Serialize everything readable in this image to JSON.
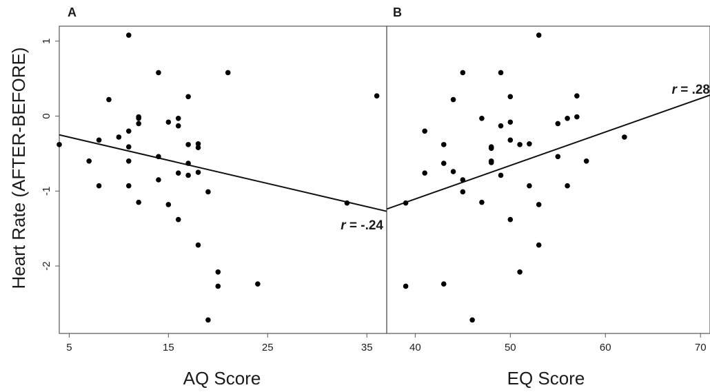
{
  "ylabel": "Heart Rate (AFTER-BEFORE)",
  "y_ticks": [
    "-2",
    "-1",
    "0",
    "1"
  ],
  "chart_data": [
    {
      "type": "scatter",
      "panel_label": "A",
      "xlabel": "AQ Score",
      "ylabel": "Heart Rate (AFTER-BEFORE)",
      "x_ticks": [
        "5",
        "15",
        "25",
        "35"
      ],
      "xlim": [
        4,
        37
      ],
      "ylim": [
        -2.9,
        1.2
      ],
      "grid": false,
      "annotation": {
        "italic": "r",
        "rest": " = -.24"
      },
      "regression": {
        "x": [
          4,
          37
        ],
        "y": [
          -0.25,
          -1.27
        ]
      },
      "points": [
        {
          "x": 4,
          "y": -0.38
        },
        {
          "x": 7,
          "y": -0.6
        },
        {
          "x": 8,
          "y": -0.32
        },
        {
          "x": 8,
          "y": -0.93
        },
        {
          "x": 9,
          "y": 0.22
        },
        {
          "x": 10,
          "y": -0.28
        },
        {
          "x": 11,
          "y": 1.08
        },
        {
          "x": 11,
          "y": -0.2
        },
        {
          "x": 11,
          "y": -0.41
        },
        {
          "x": 11,
          "y": -0.6
        },
        {
          "x": 11,
          "y": -0.93
        },
        {
          "x": 12,
          "y": -0.01
        },
        {
          "x": 12,
          "y": -0.03
        },
        {
          "x": 12,
          "y": -0.1
        },
        {
          "x": 12,
          "y": -1.15
        },
        {
          "x": 14,
          "y": 0.58
        },
        {
          "x": 14,
          "y": -0.54
        },
        {
          "x": 14,
          "y": -0.85
        },
        {
          "x": 15,
          "y": -0.08
        },
        {
          "x": 15,
          "y": -1.18
        },
        {
          "x": 16,
          "y": -0.03
        },
        {
          "x": 16,
          "y": -0.13
        },
        {
          "x": 16,
          "y": -0.76
        },
        {
          "x": 16,
          "y": -1.38
        },
        {
          "x": 17,
          "y": 0.26
        },
        {
          "x": 17,
          "y": -0.38
        },
        {
          "x": 17,
          "y": -0.63
        },
        {
          "x": 17,
          "y": -0.79
        },
        {
          "x": 18,
          "y": -0.37
        },
        {
          "x": 18,
          "y": -0.42
        },
        {
          "x": 18,
          "y": -0.75
        },
        {
          "x": 18,
          "y": -1.72
        },
        {
          "x": 19,
          "y": -1.01
        },
        {
          "x": 19,
          "y": -2.72
        },
        {
          "x": 20,
          "y": -2.08
        },
        {
          "x": 20,
          "y": -2.27
        },
        {
          "x": 21,
          "y": 0.58
        },
        {
          "x": 24,
          "y": -2.24
        },
        {
          "x": 33,
          "y": -1.16
        },
        {
          "x": 36,
          "y": 0.27
        }
      ]
    },
    {
      "type": "scatter",
      "panel_label": "B",
      "xlabel": "EQ Score",
      "ylabel": "",
      "x_ticks": [
        "40",
        "50",
        "60",
        "70"
      ],
      "xlim": [
        37,
        71
      ],
      "ylim": [
        -2.9,
        1.2
      ],
      "grid": false,
      "annotation": {
        "italic": "r",
        "rest": " = .28"
      },
      "regression": {
        "x": [
          37,
          71
        ],
        "y": [
          -1.24,
          0.28
        ]
      },
      "points": [
        {
          "x": 39,
          "y": -1.16
        },
        {
          "x": 39,
          "y": -2.27
        },
        {
          "x": 41,
          "y": -0.2
        },
        {
          "x": 41,
          "y": -0.76
        },
        {
          "x": 43,
          "y": -0.38
        },
        {
          "x": 43,
          "y": -0.63
        },
        {
          "x": 43,
          "y": -2.24
        },
        {
          "x": 44,
          "y": 0.22
        },
        {
          "x": 44,
          "y": -0.74
        },
        {
          "x": 45,
          "y": 0.58
        },
        {
          "x": 45,
          "y": -0.85
        },
        {
          "x": 45,
          "y": -1.01
        },
        {
          "x": 46,
          "y": -2.72
        },
        {
          "x": 47,
          "y": -0.03
        },
        {
          "x": 47,
          "y": -1.15
        },
        {
          "x": 48,
          "y": -0.41
        },
        {
          "x": 48,
          "y": -0.43
        },
        {
          "x": 48,
          "y": -0.6
        },
        {
          "x": 48,
          "y": -0.62
        },
        {
          "x": 49,
          "y": 0.58
        },
        {
          "x": 49,
          "y": -0.13
        },
        {
          "x": 49,
          "y": -0.79
        },
        {
          "x": 50,
          "y": 0.26
        },
        {
          "x": 50,
          "y": -0.08
        },
        {
          "x": 50,
          "y": -0.32
        },
        {
          "x": 50,
          "y": -1.38
        },
        {
          "x": 51,
          "y": -0.38
        },
        {
          "x": 51,
          "y": -2.08
        },
        {
          "x": 52,
          "y": -0.37
        },
        {
          "x": 52,
          "y": -0.93
        },
        {
          "x": 53,
          "y": 1.08
        },
        {
          "x": 53,
          "y": -1.18
        },
        {
          "x": 53,
          "y": -1.72
        },
        {
          "x": 55,
          "y": -0.1
        },
        {
          "x": 55,
          "y": -0.54
        },
        {
          "x": 56,
          "y": -0.03
        },
        {
          "x": 56,
          "y": -0.93
        },
        {
          "x": 57,
          "y": 0.27
        },
        {
          "x": 57,
          "y": -0.01
        },
        {
          "x": 58,
          "y": -0.6
        },
        {
          "x": 62,
          "y": -0.28
        }
      ]
    }
  ]
}
